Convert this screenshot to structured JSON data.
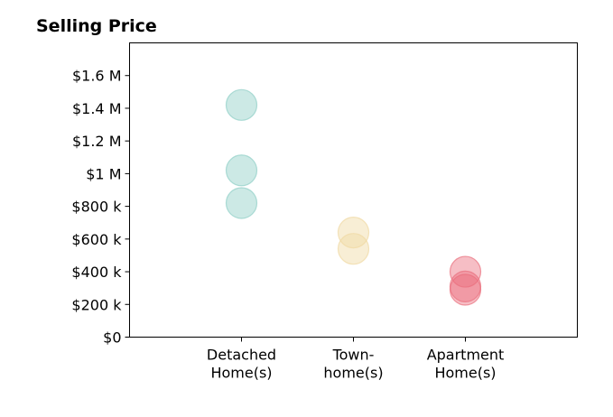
{
  "chart_data": {
    "type": "scatter",
    "title": "Selling Price",
    "xlabel": "",
    "ylabel": "",
    "categories": [
      [
        "Detached",
        "Home(s)"
      ],
      [
        "Town-",
        "home(s)"
      ],
      [
        "Apartment",
        "Home(s)"
      ]
    ],
    "xlim": [
      -1,
      3
    ],
    "ylim": [
      0,
      1800000
    ],
    "yticks": [
      {
        "value": 0,
        "label": "$0"
      },
      {
        "value": 200000,
        "label": "$200 k"
      },
      {
        "value": 400000,
        "label": "$400 k"
      },
      {
        "value": 600000,
        "label": "$600 k"
      },
      {
        "value": 800000,
        "label": "$800 k"
      },
      {
        "value": 1000000,
        "label": "$1 M"
      },
      {
        "value": 1200000,
        "label": "$1.2 M"
      },
      {
        "value": 1400000,
        "label": "$1.4 M"
      },
      {
        "value": 1600000,
        "label": "$1.6 M"
      }
    ],
    "grid": false,
    "series": [
      {
        "category_index": 0,
        "color": "#8ecfc6",
        "values": [
          1420000,
          1020000,
          820000
        ]
      },
      {
        "category_index": 1,
        "color": "#f0d9a2",
        "values": [
          640000,
          540000
        ]
      },
      {
        "category_index": 2,
        "color": "#ea6f7e",
        "values": [
          400000,
          310000,
          290000
        ]
      }
    ]
  }
}
